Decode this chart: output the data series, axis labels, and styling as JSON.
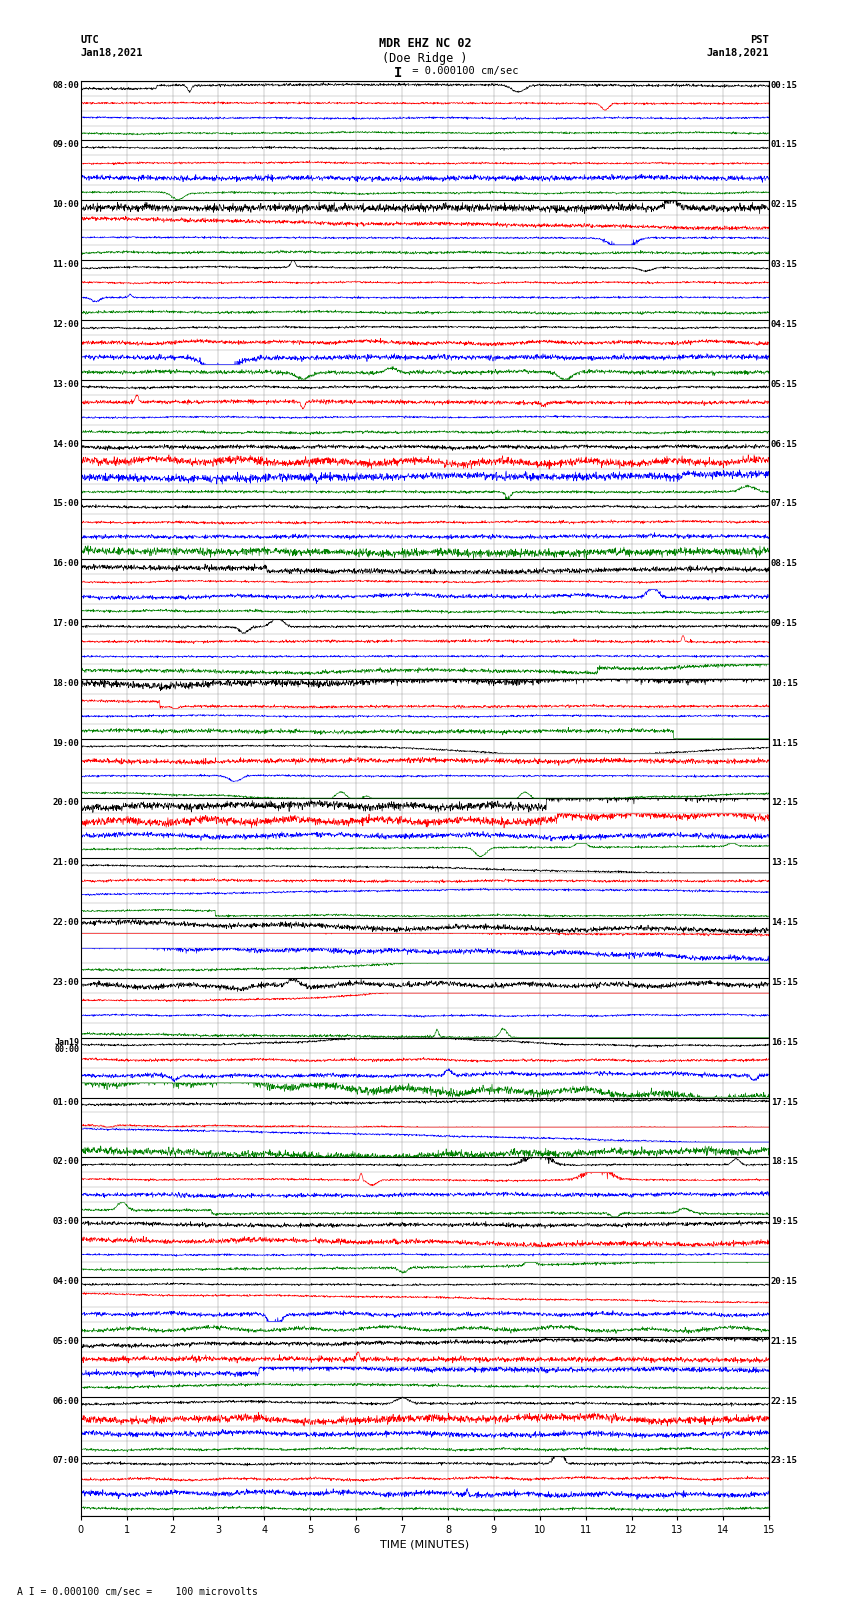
{
  "title_line1": "MDR EHZ NC 02",
  "title_line2": "(Doe Ridge )",
  "title_scale": "I = 0.000100 cm/sec",
  "left_label_top": "UTC",
  "left_label_date": "Jan18,2021",
  "right_label_top": "PST",
  "right_label_date": "Jan18,2021",
  "xlabel": "TIME (MINUTES)",
  "footnote": "A I = 0.000100 cm/sec =    100 microvolts",
  "utc_times": [
    "08:00",
    "09:00",
    "10:00",
    "11:00",
    "12:00",
    "13:00",
    "14:00",
    "15:00",
    "16:00",
    "17:00",
    "18:00",
    "19:00",
    "20:00",
    "21:00",
    "22:00",
    "23:00",
    "Jan19\n00:00",
    "01:00",
    "02:00",
    "03:00",
    "04:00",
    "05:00",
    "06:00",
    "07:00"
  ],
  "pst_times": [
    "00:15",
    "01:15",
    "02:15",
    "03:15",
    "04:15",
    "05:15",
    "06:15",
    "07:15",
    "08:15",
    "09:15",
    "10:15",
    "11:15",
    "12:15",
    "13:15",
    "14:15",
    "15:15",
    "16:15",
    "17:15",
    "18:15",
    "19:15",
    "20:15",
    "21:15",
    "22:15",
    "23:15"
  ],
  "trace_colors": [
    "black",
    "red",
    "blue",
    "green"
  ],
  "num_hours": 24,
  "traces_per_hour": 4,
  "xmin": 0,
  "xmax": 15,
  "bg_color": "white",
  "grid_color": "#888888",
  "thick_grid_color": "#000000",
  "fig_width": 8.5,
  "fig_height": 16.13,
  "dpi": 100,
  "seed": 12345
}
